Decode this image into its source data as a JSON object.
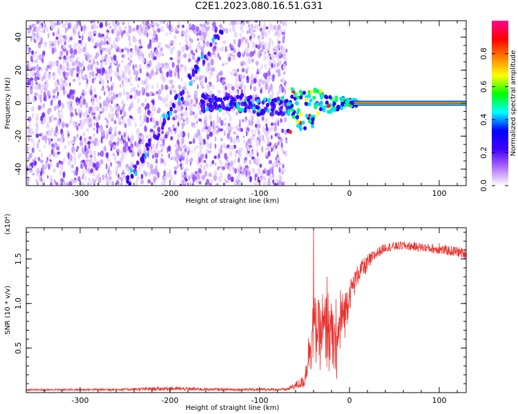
{
  "title": "C2E1.2023.080.16.51.G31",
  "chart_data": [
    {
      "type": "heatmap",
      "title": "C2E1.2023.080.16.51.G31",
      "xlabel": "Height of straight line (km)",
      "ylabel": "Frequency (Hz)",
      "xlim": [
        -360,
        130
      ],
      "ylim": [
        -50,
        50
      ],
      "x_ticks": [
        -300,
        -200,
        -100,
        0,
        100
      ],
      "y_ticks": [
        -40,
        -20,
        0,
        20,
        40
      ],
      "colorbar": {
        "label": "Normalized spectral amplitude",
        "range": [
          0.0,
          1.0
        ],
        "ticks": [
          "0.0",
          "0.2",
          "0.4",
          "0.6",
          "0.8"
        ],
        "colors": [
          "#ffffff",
          "#b06bff",
          "#4000ff",
          "#0000ff",
          "#00ffff",
          "#00ff00",
          "#ffff00",
          "#ff8000",
          "#ff0000",
          "#ff0090"
        ]
      },
      "features": {
        "noise_region_x": [
          -360,
          -70
        ],
        "diagonal_track": [
          [
            -250,
            -50
          ],
          [
            -140,
            48
          ]
        ],
        "bright_line": {
          "freq": 0,
          "x_start": 5,
          "x_end": 130
        }
      }
    },
    {
      "type": "line",
      "xlabel": "Height of straight line (km)",
      "ylabel": "SNR (10 * v/v)",
      "yscale_label": "(x10⁴)",
      "xlim": [
        -360,
        130
      ],
      "ylim": [
        0,
        1.85
      ],
      "x_ticks": [
        -300,
        -200,
        -100,
        0,
        100
      ],
      "y_ticks": [
        0.5,
        1.0,
        1.5
      ],
      "y_tick_labels": [
        "0.5",
        "1.0",
        "1.5"
      ],
      "line_color": "#e8322e",
      "envelope": {
        "x": [
          -360,
          -250,
          -200,
          -150,
          -110,
          -70,
          -50,
          -45,
          -40,
          -35,
          -30,
          -25,
          -20,
          -15,
          -10,
          -5,
          0,
          5,
          10,
          20,
          30,
          40,
          60,
          80,
          100,
          120,
          130
        ],
        "y_low": [
          0.02,
          0.02,
          0.02,
          0.02,
          0.02,
          0.02,
          0.05,
          0.15,
          0.25,
          0.25,
          0.2,
          0.15,
          0.1,
          0.1,
          0.3,
          0.6,
          0.9,
          1.05,
          1.2,
          1.35,
          1.5,
          1.58,
          1.6,
          1.58,
          1.55,
          1.52,
          1.5
        ],
        "y_high": [
          0.04,
          0.05,
          0.07,
          0.05,
          0.05,
          0.05,
          0.2,
          0.7,
          1.1,
          1.05,
          0.95,
          1.2,
          1.0,
          0.7,
          1.1,
          1.15,
          1.25,
          1.35,
          1.45,
          1.55,
          1.62,
          1.68,
          1.7,
          1.68,
          1.66,
          1.64,
          1.62
        ]
      },
      "spikes": [
        [
          -40,
          1.9
        ],
        [
          -30,
          1.1
        ],
        [
          -25,
          1.3
        ],
        [
          -15,
          1.05
        ],
        [
          -10,
          1.15
        ],
        [
          100,
          1.68
        ]
      ]
    }
  ]
}
